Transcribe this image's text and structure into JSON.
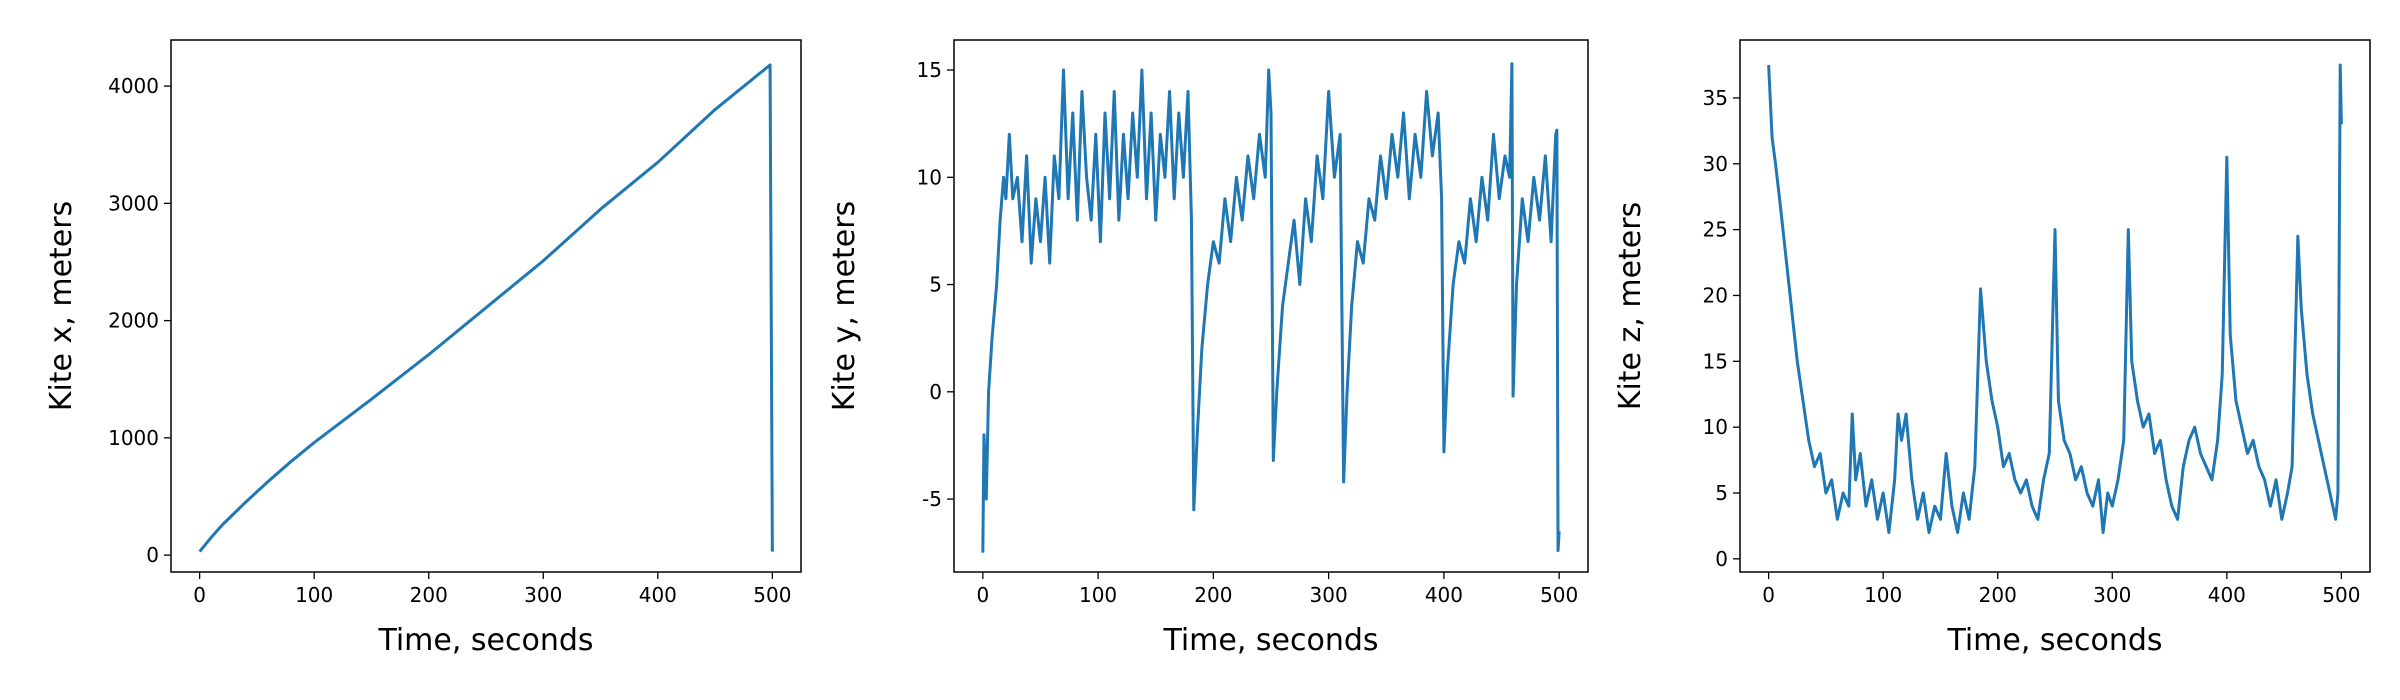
{
  "chart_data": [
    {
      "type": "line",
      "xlabel": "Time, seconds",
      "ylabel": "Kite x, meters",
      "color": "#1f77b4",
      "x": [
        0,
        10,
        20,
        40,
        60,
        80,
        100,
        150,
        200,
        250,
        300,
        350,
        400,
        450,
        498,
        500
      ],
      "values": [
        30,
        150,
        260,
        450,
        630,
        800,
        960,
        1330,
        1710,
        2110,
        2510,
        2950,
        3350,
        3800,
        4180,
        30
      ],
      "xlim": [
        -25,
        525
      ],
      "xticks": [
        0,
        100,
        200,
        300,
        400,
        500
      ],
      "ylim": [
        -144,
        4393
      ],
      "yticks": [
        0,
        1000,
        2000,
        3000,
        4000
      ]
    },
    {
      "type": "line",
      "xlabel": "Time, seconds",
      "ylabel": "Kite y, meters",
      "color": "#1f77b4",
      "x": [
        0,
        1,
        3,
        5,
        8,
        12,
        15,
        18,
        20,
        23,
        26,
        30,
        34,
        38,
        42,
        46,
        50,
        54,
        58,
        62,
        66,
        70,
        74,
        78,
        82,
        86,
        90,
        94,
        98,
        102,
        106,
        110,
        114,
        118,
        122,
        126,
        130,
        134,
        138,
        142,
        146,
        150,
        154,
        158,
        162,
        166,
        170,
        174,
        178,
        181,
        183,
        186,
        190,
        195,
        200,
        205,
        210,
        215,
        220,
        225,
        230,
        235,
        240,
        245,
        248,
        250,
        252,
        255,
        260,
        265,
        270,
        275,
        280,
        285,
        290,
        295,
        300,
        305,
        310,
        313,
        316,
        320,
        325,
        330,
        335,
        340,
        345,
        350,
        355,
        360,
        365,
        370,
        375,
        380,
        385,
        390,
        395,
        398,
        400,
        403,
        408,
        413,
        418,
        423,
        428,
        433,
        438,
        443,
        448,
        453,
        457,
        459,
        460,
        463,
        468,
        473,
        478,
        483,
        488,
        493,
        497,
        498,
        499,
        500
      ],
      "values": [
        -7.5,
        -2,
        -5,
        0,
        2.5,
        5,
        8,
        10,
        9,
        12,
        9,
        10,
        7,
        11,
        6,
        9,
        7,
        10,
        6,
        11,
        9,
        15,
        9,
        13,
        8,
        14,
        10,
        8,
        12,
        7,
        13,
        9,
        14,
        8,
        12,
        9,
        13,
        10,
        15,
        9,
        13,
        8,
        12,
        10,
        14,
        9,
        13,
        10,
        14,
        8,
        -5.5,
        -2,
        2,
        5,
        7,
        6,
        9,
        7,
        10,
        8,
        11,
        9,
        12,
        10,
        15,
        13,
        -3.2,
        0,
        4,
        6,
        8,
        5,
        9,
        7,
        11,
        9,
        14,
        10,
        12,
        -4.2,
        0,
        4,
        7,
        6,
        9,
        8,
        11,
        9,
        12,
        10,
        13,
        9,
        12,
        10,
        14,
        11,
        13,
        9,
        -2.8,
        1,
        5,
        7,
        6,
        9,
        7,
        10,
        8,
        12,
        9,
        11,
        10,
        15.3,
        -0.2,
        5,
        9,
        7,
        10,
        8,
        11,
        7,
        12,
        12.2,
        -7.4,
        -6.5
      ],
      "xlim": [
        -25,
        525
      ],
      "xticks": [
        0,
        100,
        200,
        300,
        400,
        500
      ],
      "ylim": [
        -8.4,
        16.4
      ],
      "yticks": [
        -5,
        0,
        5,
        10,
        15
      ]
    },
    {
      "type": "line",
      "xlabel": "Time, seconds",
      "ylabel": "Kite z, meters",
      "color": "#1f77b4",
      "x": [
        0,
        3,
        6,
        10,
        15,
        20,
        25,
        30,
        35,
        40,
        45,
        50,
        55,
        60,
        65,
        70,
        73,
        76,
        80,
        85,
        90,
        95,
        100,
        105,
        110,
        113,
        116,
        120,
        125,
        130,
        135,
        140,
        145,
        150,
        155,
        160,
        165,
        170,
        175,
        180,
        185,
        190,
        195,
        200,
        205,
        210,
        215,
        220,
        225,
        230,
        235,
        240,
        245,
        250,
        253,
        258,
        263,
        268,
        273,
        278,
        283,
        288,
        292,
        296,
        300,
        305,
        310,
        314,
        317,
        322,
        327,
        332,
        337,
        342,
        347,
        352,
        357,
        362,
        367,
        372,
        377,
        382,
        387,
        392,
        396,
        400,
        403,
        408,
        413,
        418,
        423,
        428,
        433,
        438,
        443,
        448,
        453,
        457,
        462,
        465,
        470,
        475,
        480,
        485,
        490,
        495,
        497,
        499,
        500
      ],
      "values": [
        37.5,
        32,
        30,
        27,
        23,
        19,
        15,
        12,
        9,
        7,
        8,
        5,
        6,
        3,
        5,
        4,
        11,
        6,
        8,
        4,
        6,
        3,
        5,
        2,
        6,
        11,
        9,
        11,
        6,
        3,
        5,
        2,
        4,
        3,
        8,
        4,
        2,
        5,
        3,
        7,
        20.5,
        15,
        12,
        10,
        7,
        8,
        6,
        5,
        6,
        4,
        3,
        6,
        8,
        25,
        12,
        9,
        8,
        6,
        7,
        5,
        4,
        6,
        2,
        5,
        4,
        6,
        9,
        25,
        15,
        12,
        10,
        11,
        8,
        9,
        6,
        4,
        3,
        7,
        9,
        10,
        8,
        7,
        6,
        9,
        14,
        30.5,
        17,
        12,
        10,
        8,
        9,
        7,
        6,
        4,
        6,
        3,
        5,
        7,
        24.5,
        19,
        14,
        11,
        9,
        7,
        5,
        3,
        5,
        37.5,
        33
      ],
      "xlim": [
        -25,
        525
      ],
      "xticks": [
        0,
        100,
        200,
        300,
        400,
        500
      ],
      "ylim": [
        -1.0,
        39.4
      ],
      "yticks": [
        0,
        5,
        10,
        15,
        20,
        25,
        30,
        35
      ]
    }
  ]
}
